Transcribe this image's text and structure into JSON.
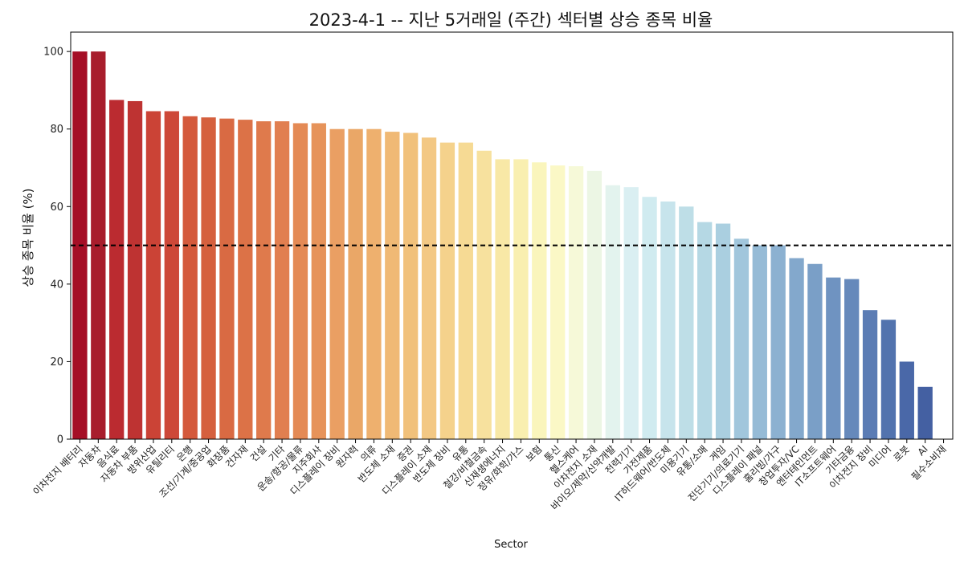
{
  "chart_data": {
    "type": "bar",
    "title": "2023-4-1 -- 지난 5거래일 (주간) 섹터별 상승 종목 비율",
    "xlabel": "Sector",
    "ylabel": "상승 종목 비율 (%)",
    "ylim": [
      0,
      105
    ],
    "yticks": [
      0,
      20,
      40,
      60,
      80,
      100
    ],
    "reference_line": {
      "y": 50,
      "style": "dashed",
      "color": "#000000"
    },
    "grid": false,
    "categories": [
      "이차전지 배터리",
      "자동차",
      "음식료",
      "자동차 부품",
      "방위산업",
      "유틸리티",
      "은행",
      "조선/기계/중공업",
      "화장품",
      "건자재",
      "건설",
      "기타",
      "운송/항공/물류",
      "지주회사",
      "디스플레이 장비",
      "원자력",
      "의류",
      "반도체 소재",
      "증권",
      "디스플레이 소재",
      "반도체 장비",
      "유통",
      "철강/비철금속",
      "신재생에너지",
      "정유/화학/가스",
      "보험",
      "통신",
      "헬스케어",
      "이차전지 소재",
      "바이오/제약/신약개발",
      "전력기기",
      "가전제품",
      "IT하드웨어/반도체",
      "미용기기",
      "유통/소매",
      "게임",
      "진단기기/의료기기",
      "디스플레이 패널",
      "홈리빙/가구",
      "창업투자/VC",
      "엔터테인먼트",
      "IT소프트웨어",
      "기타금융",
      "이차전지 장비",
      "미디어",
      "로봇",
      "AI",
      "필수소비재"
    ],
    "values": [
      100,
      100,
      87.5,
      87.2,
      84.6,
      84.6,
      83.3,
      83.0,
      82.7,
      82.4,
      82.0,
      82.0,
      81.5,
      81.5,
      80.0,
      80.0,
      80.0,
      79.3,
      79.0,
      77.8,
      76.5,
      76.5,
      74.4,
      72.2,
      72.2,
      71.4,
      70.6,
      70.4,
      69.2,
      65.5,
      65.0,
      62.5,
      61.3,
      60.0,
      56.0,
      55.6,
      51.7,
      50.0,
      50.0,
      46.7,
      45.2,
      41.7,
      41.3,
      33.3,
      30.8,
      20.0,
      13.5,
      0
    ],
    "colors": [
      "#a50f26",
      "#a81d2c",
      "#bb2b30",
      "#be3332",
      "#cb4336",
      "#cd4838",
      "#d45a3c",
      "#d5603e",
      "#d96a43",
      "#dc7247",
      "#df7a4c",
      "#e17f50",
      "#e48a55",
      "#e6935a",
      "#ea9f63",
      "#eaa767",
      "#eeb06e",
      "#f0b975",
      "#f1c17b",
      "#f3c884",
      "#f5d28c",
      "#f6da94",
      "#f7e19e",
      "#f8e8a6",
      "#f9efb0",
      "#faf5bc",
      "#fbf8c6",
      "#f6f9d8",
      "#ecf6e4",
      "#e3f3ee",
      "#daeff2",
      "#d0ebf0",
      "#c7e4ec",
      "#bedee7",
      "#b5d8e4",
      "#aacfe0",
      "#a1c6dc",
      "#96bbd6",
      "#8cb1d1",
      "#83a8cc",
      "#7a9fc7",
      "#6f93c1",
      "#6689bb",
      "#5b7cb4",
      "#5273ae",
      "#4a68a8",
      "#4460a2",
      "#3e579c"
    ]
  }
}
